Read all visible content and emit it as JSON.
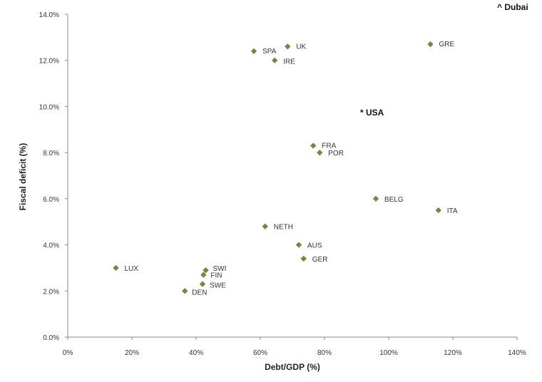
{
  "chart_data": {
    "type": "scatter",
    "xlabel": "Debt/GDP (%)",
    "ylabel": "Fiscal deficit (%)",
    "xlim": [
      0,
      140
    ],
    "ylim": [
      0,
      14
    ],
    "x_ticks": [
      "0%",
      "20%",
      "40%",
      "60%",
      "80%",
      "100%",
      "120%",
      "140%"
    ],
    "y_ticks": [
      "0.0%",
      "2.0%",
      "4.0%",
      "6.0%",
      "8.0%",
      "10.0%",
      "12.0%",
      "14.0%"
    ],
    "marker_color": "#6e8b3d",
    "grid": false,
    "points": [
      {
        "label": "LUX",
        "x": 15,
        "y": 3.0
      },
      {
        "label": "DEN",
        "x": 36.5,
        "y": 2.0
      },
      {
        "label": "SWE",
        "x": 42,
        "y": 2.3
      },
      {
        "label": "FIN",
        "x": 42.3,
        "y": 2.7
      },
      {
        "label": "SWI",
        "x": 43,
        "y": 2.9
      },
      {
        "label": "SPA",
        "x": 58,
        "y": 12.4
      },
      {
        "label": "NETH",
        "x": 61.5,
        "y": 4.8
      },
      {
        "label": "IRE",
        "x": 64.5,
        "y": 12.0
      },
      {
        "label": "UK",
        "x": 68.5,
        "y": 12.6
      },
      {
        "label": "AUS",
        "x": 72,
        "y": 4.0
      },
      {
        "label": "GER",
        "x": 73.5,
        "y": 3.4
      },
      {
        "label": "FRA",
        "x": 76.5,
        "y": 8.3
      },
      {
        "label": "POR",
        "x": 78.5,
        "y": 8.0
      },
      {
        "label": "BELG",
        "x": 96,
        "y": 6.0
      },
      {
        "label": "GRE",
        "x": 113,
        "y": 12.7
      },
      {
        "label": "ITA",
        "x": 115.5,
        "y": 5.5
      }
    ],
    "annotations": [
      {
        "label": "* USA"
      },
      {
        "label": "^ Dubai"
      }
    ]
  }
}
